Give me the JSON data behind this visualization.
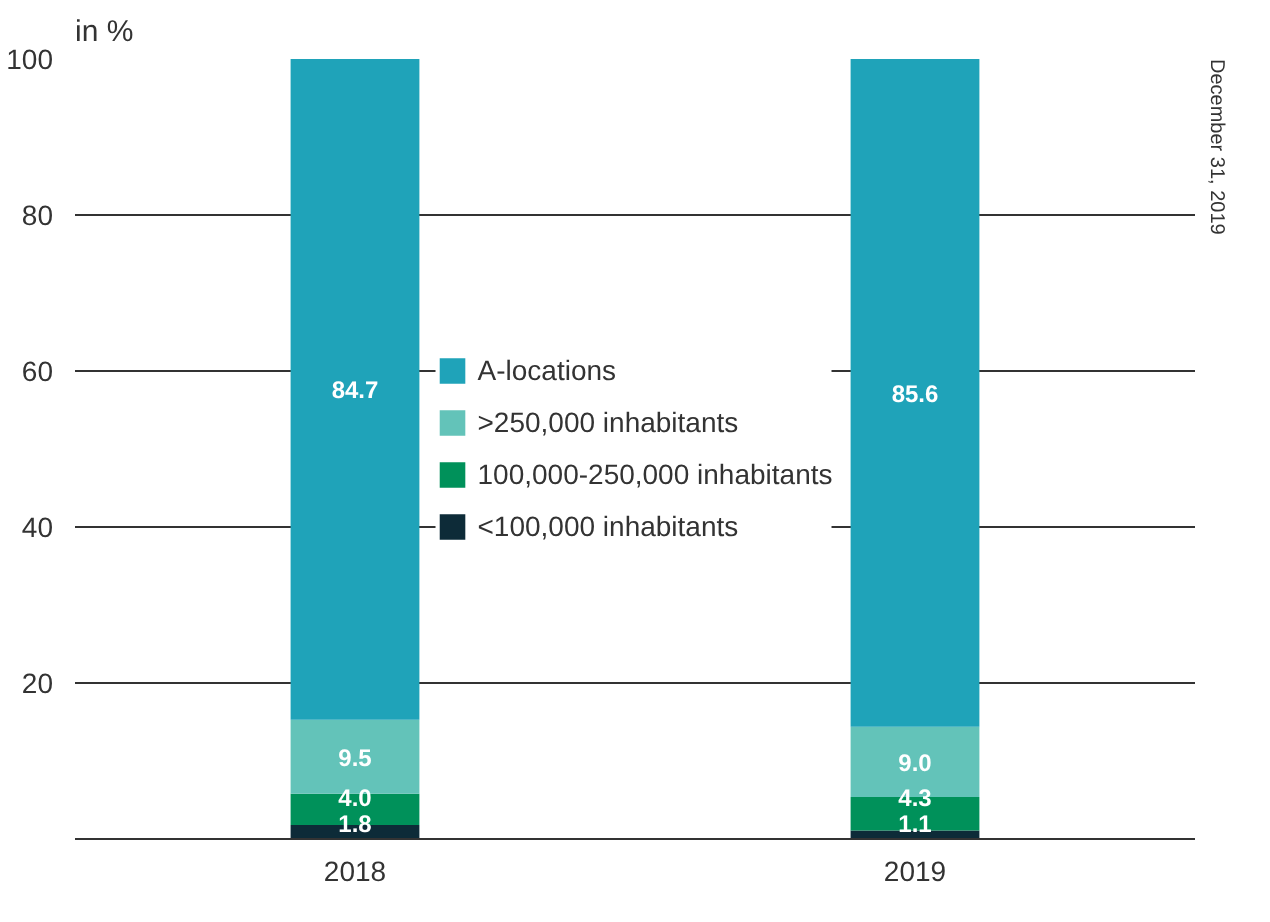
{
  "chart_data": {
    "type": "bar",
    "stacked": true,
    "ylabel": "in %",
    "categories": [
      "2018",
      "2019"
    ],
    "series": [
      {
        "name": "<100,000 inhabitants",
        "color": "#0d2b38",
        "values": [
          1.8,
          1.1
        ],
        "value_labels": [
          "1.8",
          "1.1"
        ]
      },
      {
        "name": "100,000-250,000 inhabitants",
        "color": "#00915a",
        "values": [
          4.0,
          4.3
        ],
        "value_labels": [
          "4.0",
          "4.3"
        ]
      },
      {
        "name": ">250,000 inhabitants",
        "color": "#63c3b9",
        "values": [
          9.5,
          9.0
        ],
        "value_labels": [
          "9.5",
          "9.0"
        ]
      },
      {
        "name": "A-locations",
        "color": "#1fa3b9",
        "values": [
          84.7,
          85.6
        ],
        "value_labels": [
          "84.7",
          "85.6"
        ]
      }
    ],
    "ylim": [
      0,
      100
    ],
    "yticks": [
      20,
      40,
      60,
      80,
      100
    ],
    "grid": "y",
    "legend": "center",
    "annotations": [
      "December 31, 2019"
    ]
  }
}
